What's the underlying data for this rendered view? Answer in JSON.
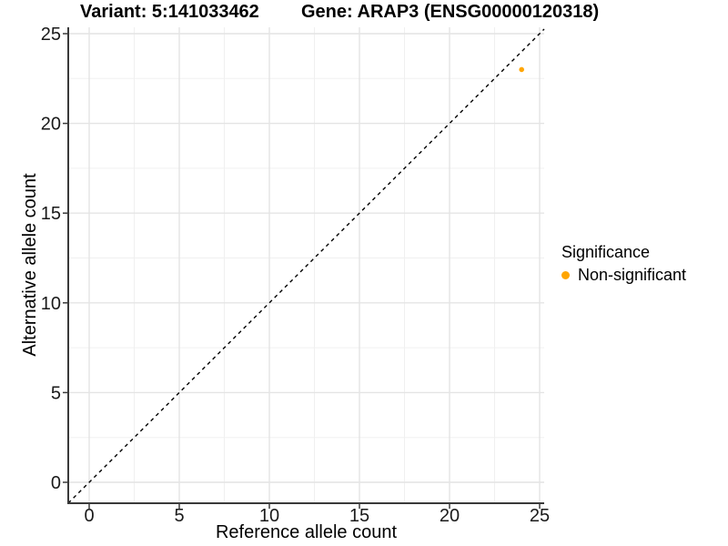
{
  "chart_data": {
    "type": "scatter",
    "title_left": "Variant: 5:141033462",
    "title_right": "Gene: ARAP3 (ENSG00000120318)",
    "xlabel": "Reference allele count",
    "ylabel": "Alternative allele count",
    "xlim": [
      -1.16,
      25.25
    ],
    "ylim": [
      -1.17,
      25.35
    ],
    "x_ticks": [
      0,
      5,
      10,
      15,
      20,
      25
    ],
    "y_ticks": [
      0,
      5,
      10,
      15,
      20,
      25
    ],
    "x_minor_ticks": [
      2.5,
      7.5,
      12.5,
      17.5,
      22.5
    ],
    "y_minor_ticks": [
      2.5,
      7.5,
      12.5,
      17.5,
      22.5
    ],
    "grid": true,
    "identity_line": {
      "slope": 1,
      "intercept": 0,
      "style": "dashed",
      "color": "#000000"
    },
    "series": [
      {
        "name": "Non-significant",
        "color": "#FFA500",
        "points": [
          {
            "x": 24,
            "y": 23
          }
        ]
      }
    ],
    "legend": {
      "title": "Significance",
      "position": "right",
      "items": [
        {
          "label": "Non-significant",
          "color": "#FFA500"
        }
      ]
    }
  },
  "colors": {
    "background": "#FFFFFF",
    "grid_major": "#E4E4E4",
    "grid_minor": "#F0F0F0",
    "axis_line": "#3A3A3A",
    "tick_mark": "#3A3A3A",
    "tick_label": "#1A1A1A",
    "text": "#000000"
  }
}
